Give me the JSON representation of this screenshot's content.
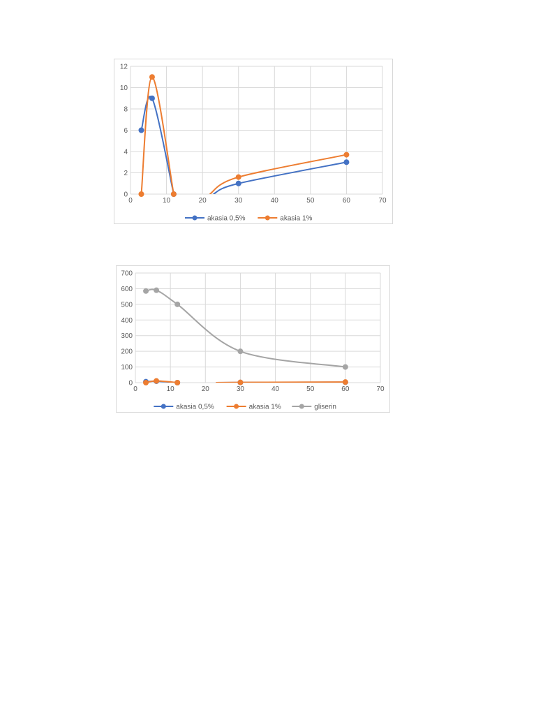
{
  "chart_data": [
    {
      "type": "scatter",
      "title": "",
      "xlabel": "",
      "ylabel": "",
      "xlim": [
        0,
        70
      ],
      "ylim": [
        0,
        12
      ],
      "xticks": [
        0,
        10,
        20,
        30,
        40,
        50,
        60,
        70
      ],
      "yticks": [
        0,
        2,
        4,
        6,
        8,
        10,
        12
      ],
      "grid": true,
      "legend": "bottom",
      "series": [
        {
          "name": "akasia 0,5%",
          "color": "#4472C4",
          "segments": [
            [
              [
                3,
                6
              ],
              [
                6,
                9
              ],
              [
                12,
                0
              ]
            ],
            [
              [
                23,
                0
              ],
              [
                30,
                1
              ],
              [
                60,
                3
              ]
            ]
          ]
        },
        {
          "name": "akasia 1%",
          "color": "#ED7D31",
          "segments": [
            [
              [
                3,
                0
              ],
              [
                6,
                11
              ],
              [
                12,
                0
              ]
            ],
            [
              [
                22,
                0
              ],
              [
                30,
                1.6
              ],
              [
                60,
                3.7
              ]
            ]
          ]
        }
      ]
    },
    {
      "type": "scatter",
      "title": "",
      "xlabel": "",
      "ylabel": "",
      "xlim": [
        0,
        70
      ],
      "ylim": [
        0,
        700
      ],
      "xticks": [
        0,
        10,
        20,
        30,
        40,
        50,
        60,
        70
      ],
      "yticks": [
        0,
        100,
        200,
        300,
        400,
        500,
        600,
        700
      ],
      "grid": true,
      "legend": "bottom",
      "series": [
        {
          "name": "akasia 0,5%",
          "color": "#4472C4",
          "segments": [
            [
              [
                3,
                6
              ],
              [
                6,
                9
              ],
              [
                12,
                0
              ]
            ],
            [
              [
                23,
                0
              ],
              [
                30,
                1
              ],
              [
                60,
                3
              ]
            ]
          ]
        },
        {
          "name": "akasia 1%",
          "color": "#ED7D31",
          "segments": [
            [
              [
                3,
                0
              ],
              [
                6,
                11
              ],
              [
                12,
                0
              ]
            ],
            [
              [
                23,
                0
              ],
              [
                30,
                1.6
              ],
              [
                60,
                3.7
              ]
            ]
          ]
        },
        {
          "name": "gliserin",
          "color": "#A5A5A5",
          "segments": [
            [
              [
                3,
                585
              ],
              [
                6,
                590
              ],
              [
                12,
                500
              ],
              [
                30,
                200
              ],
              [
                60,
                100
              ]
            ]
          ]
        }
      ]
    }
  ]
}
